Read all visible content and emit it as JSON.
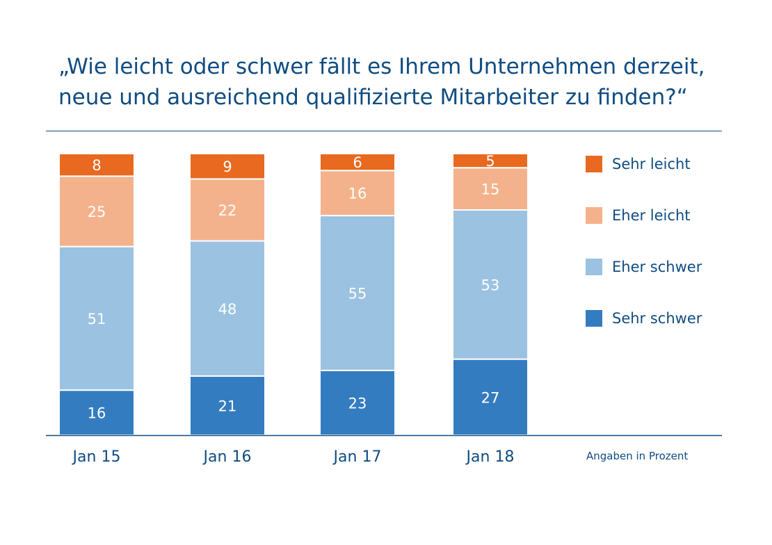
{
  "title": {
    "line1": "„Wie leicht oder schwer fällt es Ihrem Unternehmen derzeit,",
    "line2": "neue und ausreichend qualifizierte Mitarbeiter zu finden?“"
  },
  "note": "Angaben in Prozent",
  "chart_data": {
    "type": "bar",
    "stacked": true,
    "title": "„Wie leicht oder schwer fällt es Ihrem Unternehmen derzeit, neue und ausreichend qualifizierte Mitarbeiter zu finden?“",
    "unit": "Angaben in Prozent",
    "categories": [
      "Jan 15",
      "Jan 16",
      "Jan 17",
      "Jan 18"
    ],
    "series": [
      {
        "name": "Sehr schwer",
        "color": "#347cc0",
        "values": [
          16,
          21,
          23,
          27
        ]
      },
      {
        "name": "Eher schwer",
        "color": "#9bc2e0",
        "values": [
          51,
          48,
          55,
          53
        ]
      },
      {
        "name": "Eher leicht",
        "color": "#f4b28c",
        "values": [
          25,
          22,
          16,
          15
        ]
      },
      {
        "name": "Sehr leicht",
        "color": "#e8691f",
        "values": [
          8,
          9,
          6,
          5
        ]
      }
    ],
    "legend_order": [
      "Sehr leicht",
      "Eher leicht",
      "Eher schwer",
      "Sehr schwer"
    ],
    "ylim": [
      0,
      100
    ]
  }
}
